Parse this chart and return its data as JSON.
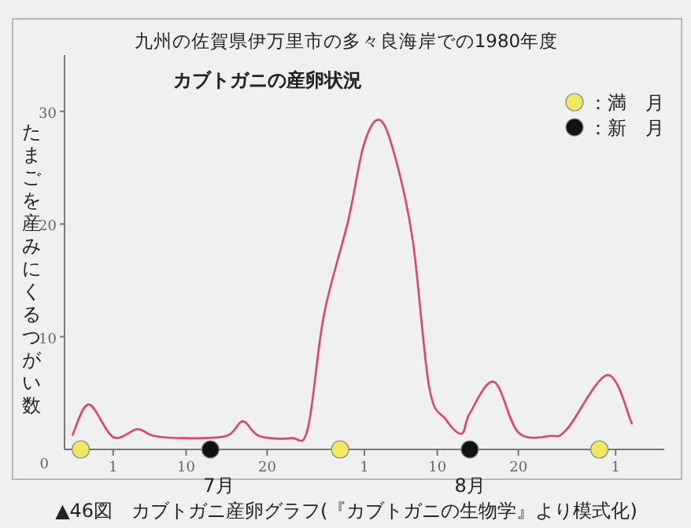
{
  "chart_data": {
    "type": "line",
    "title": "九州の佐賀県伊万里市の多々良海岸での1980年度",
    "subtitle": "カブトガニの産卵状況",
    "ylabel": "たまごを産みにくるつがい数",
    "xlim": [
      "--06-25",
      "--09-07"
    ],
    "ylim": [
      0,
      35
    ],
    "xticks": [
      {
        "value": "--07-01",
        "label": "1"
      },
      {
        "value": "--07-10",
        "label": "10"
      },
      {
        "value": "--07-20",
        "label": "20"
      },
      {
        "value": "--08-01",
        "label": "1"
      },
      {
        "value": "--08-10",
        "label": "10"
      },
      {
        "value": "--08-20",
        "label": "20"
      },
      {
        "value": "--09-01",
        "label": "1"
      }
    ],
    "yticks": [
      0,
      10,
      20,
      30
    ],
    "legend": "top right",
    "line_style": "solid",
    "series": [
      {
        "color": "#e0426e",
        "x": [
          "--06-26",
          "--06-28",
          "--07-01",
          "--07-04",
          "--07-06",
          "--07-10",
          "--07-15",
          "--07-17",
          "--07-19",
          "--07-23",
          "--07-25",
          "--07-27",
          "--07-30",
          "--08-01",
          "--08-03",
          "--08-05",
          "--08-07",
          "--08-09",
          "--08-11",
          "--08-13",
          "--08-14",
          "--08-17",
          "--08-20",
          "--08-24",
          "--08-26",
          "--08-31",
          "--09-03"
        ],
        "values": [
          1.3,
          4.0,
          1.1,
          1.8,
          1.2,
          1.0,
          1.2,
          2.5,
          1.2,
          1.0,
          1.8,
          11.9,
          20.3,
          27.2,
          29.2,
          25.4,
          18.4,
          5.5,
          2.7,
          1.4,
          3.2,
          6.0,
          1.5,
          1.2,
          1.8,
          6.6,
          2.3
        ]
      },
      {
        "type": "scatter",
        "name": "：満　月",
        "color": "#f0e860",
        "marker": "circle",
        "x": [
          "--06-27",
          "--07-29",
          "--08-30"
        ],
        "values": [
          0,
          0,
          0
        ]
      },
      {
        "type": "scatter",
        "name": "：新　月",
        "color": "#111111",
        "marker": "circle",
        "x": [
          "--07-13",
          "--08-14"
        ],
        "values": [
          0,
          0
        ]
      }
    ],
    "annotations": [
      "7月",
      "8月",
      "▲46図　カブトガニ産卵グラフ(『カブトガニの生物学』より模式化)"
    ]
  }
}
